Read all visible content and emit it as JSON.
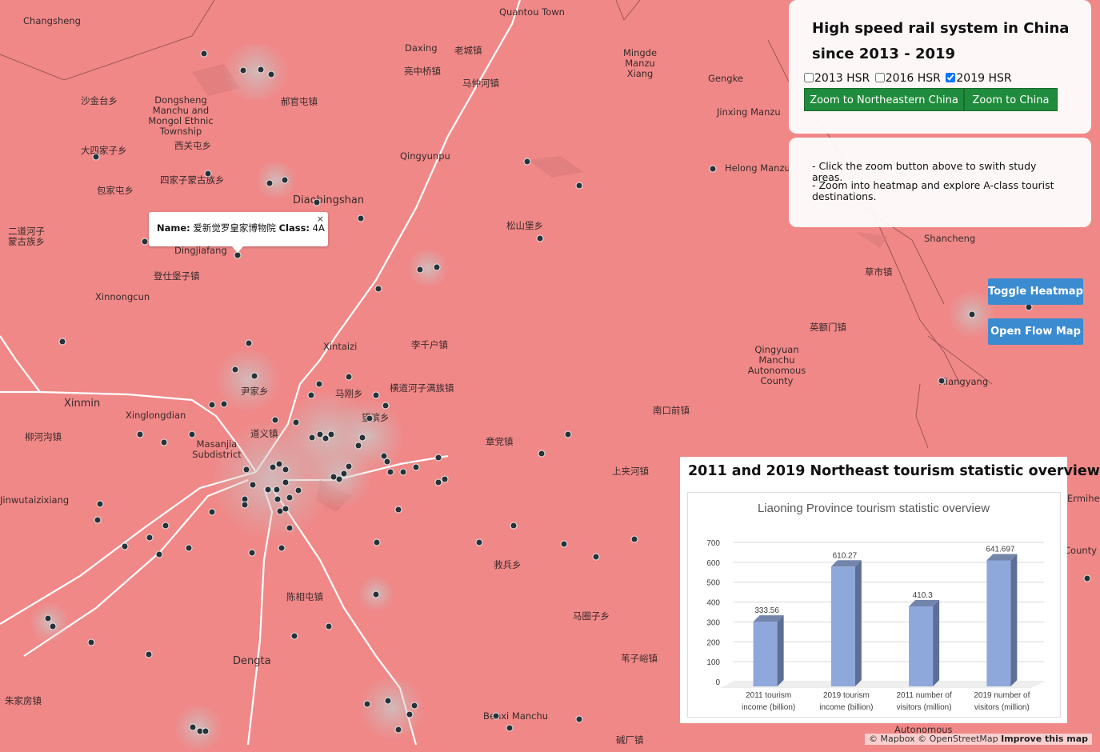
{
  "title": "High speed rail system in China since 2013 - 2019",
  "layers": [
    {
      "label": "2013 HSR",
      "checked": false
    },
    {
      "label": "2016 HSR",
      "checked": false
    },
    {
      "label": "2019 HSR",
      "checked": true
    }
  ],
  "zoom_buttons": {
    "northeast": "Zoom to Northeastern China",
    "china": "Zoom to China"
  },
  "info": {
    "line1": "- Click the zoom button above to swith study areas.",
    "line2": "- Zoom into heatmap and explore A-class tourist destinations."
  },
  "side_buttons": {
    "heatmap": "Toggle Heatmap",
    "flow": "Open Flow Map"
  },
  "popup": {
    "name_label": "Name:",
    "name_value": " 爱新觉罗皇家博物院 ",
    "class_label": "Class:",
    "class_value": " 4A",
    "close": "×"
  },
  "chart_panel_title": "2011 and 2019 Northeast tourism statistic overview",
  "chart_data": {
    "type": "bar",
    "title": "Liaoning Province tourism statistic overview",
    "categories": [
      "2011 tourism income (billion)",
      "2019 tourism income (billion)",
      "2011 number of visitors (million)",
      "2019 number of visitors (million)"
    ],
    "category_lines": [
      [
        "2011 tourism",
        "income (billion)"
      ],
      [
        "2019 tourism",
        "income (billion)"
      ],
      [
        "2011 number of",
        "visitors (million)"
      ],
      [
        "2019 number of",
        "visitors (million)"
      ]
    ],
    "values": [
      333.56,
      610.27,
      410.3,
      641.697
    ],
    "value_labels": [
      "333.56",
      "610.27",
      "410.3",
      "641.697"
    ],
    "yticks": [
      0,
      100,
      200,
      300,
      400,
      500,
      600,
      700
    ],
    "ylim": [
      0,
      700
    ],
    "grid": true,
    "bar_color": "#8fa8dc"
  },
  "attribution": {
    "text": "© Mapbox © OpenStreetMap",
    "improve": "Improve this map"
  },
  "places": [
    "Changsheng",
    "Quantou Town",
    "Daxing",
    "老城镇",
    "Mingde Manzu Xiang",
    "Gengke",
    "亮中桥镇",
    "马仲河镇",
    "沙金台乡",
    "Dongsheng Manchu and Mongol Ethnic Township",
    "郝官屯镇",
    "Jinxing Manzu",
    "大四家子乡",
    "西关屯乡",
    "Qingyunpu",
    "Helong Manzu",
    "包家屯乡",
    "四家子蒙古族乡",
    "Diaobingshan",
    "二道河子蒙古族乡",
    "松山堡乡",
    "Dingjiafang",
    "登仕堡子镇",
    "Shancheng",
    "草市镇",
    "Xinnongcun",
    "英额门镇",
    "Xintaizi",
    "李千户镇",
    "Qingyuan Manchu Autonomous County",
    "尹家乡",
    "马刚乡",
    "横道河子满族镇",
    "Xiangyang",
    "Xinmin",
    "Xinglongdian",
    "望滨乡",
    "南口前镇",
    "柳河沟镇",
    "道义镇",
    "Masanjia Subdistrict",
    "章党镇",
    "上夹河镇",
    "Jinwutaizixiang",
    "救兵乡",
    "陈相屯镇",
    "马圈子乡",
    "Dengta",
    "苇子峪镇",
    "朱家房镇",
    "Benxi Manchu",
    "碱厂镇",
    "Autonomous",
    "Ermihe",
    "County"
  ]
}
